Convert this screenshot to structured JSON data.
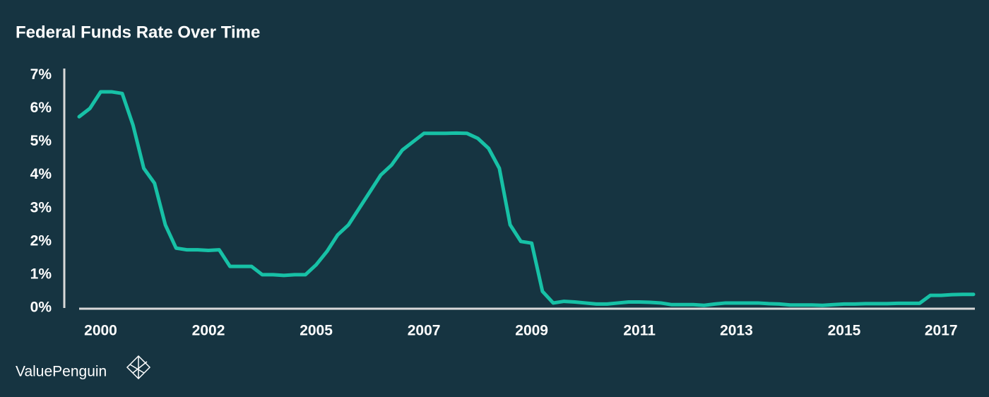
{
  "chart_data": {
    "type": "line",
    "title": "Federal Funds Rate Over Time",
    "categories": [
      null,
      null,
      "2000",
      null,
      null,
      null,
      null,
      null,
      null,
      null,
      null,
      null,
      "2002",
      null,
      null,
      null,
      null,
      null,
      null,
      null,
      null,
      null,
      "2005",
      null,
      null,
      null,
      null,
      null,
      null,
      null,
      null,
      null,
      "2007",
      null,
      null,
      null,
      null,
      null,
      null,
      null,
      null,
      null,
      "2009",
      null,
      null,
      null,
      null,
      null,
      null,
      null,
      null,
      null,
      "2011",
      null,
      null,
      null,
      null,
      null,
      null,
      null,
      null,
      "2013",
      null,
      null,
      null,
      null,
      null,
      null,
      null,
      null,
      null,
      "2015",
      null,
      null,
      null,
      null,
      null,
      null,
      null,
      null,
      "2017",
      null,
      null,
      null
    ],
    "values": [
      5.75,
      6.0,
      6.5,
      6.5,
      6.45,
      5.5,
      4.2,
      3.75,
      2.5,
      1.8,
      1.75,
      1.75,
      1.73,
      1.75,
      1.25,
      1.25,
      1.25,
      1.0,
      1.0,
      0.98,
      1.0,
      1.0,
      1.3,
      1.7,
      2.2,
      2.5,
      3.0,
      3.5,
      4.0,
      4.3,
      4.75,
      5.0,
      5.25,
      5.25,
      5.25,
      5.26,
      5.25,
      5.1,
      4.8,
      4.2,
      2.5,
      2.0,
      1.95,
      0.5,
      0.15,
      0.2,
      0.18,
      0.15,
      0.12,
      0.12,
      0.15,
      0.18,
      0.18,
      0.17,
      0.15,
      0.1,
      0.1,
      0.1,
      0.08,
      0.12,
      0.15,
      0.15,
      0.15,
      0.15,
      0.13,
      0.12,
      0.09,
      0.09,
      0.09,
      0.08,
      0.1,
      0.12,
      0.12,
      0.13,
      0.13,
      0.13,
      0.14,
      0.14,
      0.14,
      0.38,
      0.38,
      0.4,
      0.41,
      0.41
    ],
    "color": "#17c1a6",
    "ylim": [
      0,
      7.2
    ],
    "yticks": [
      {
        "value": 0,
        "label": "0%"
      },
      {
        "value": 1,
        "label": "1%"
      },
      {
        "value": 2,
        "label": "2%"
      },
      {
        "value": 3,
        "label": "3%"
      },
      {
        "value": 4,
        "label": "4%"
      },
      {
        "value": 5,
        "label": "5%"
      },
      {
        "value": 6,
        "label": "6%"
      },
      {
        "value": 7,
        "label": "7%"
      }
    ],
    "footer": "ValuePenguin"
  }
}
